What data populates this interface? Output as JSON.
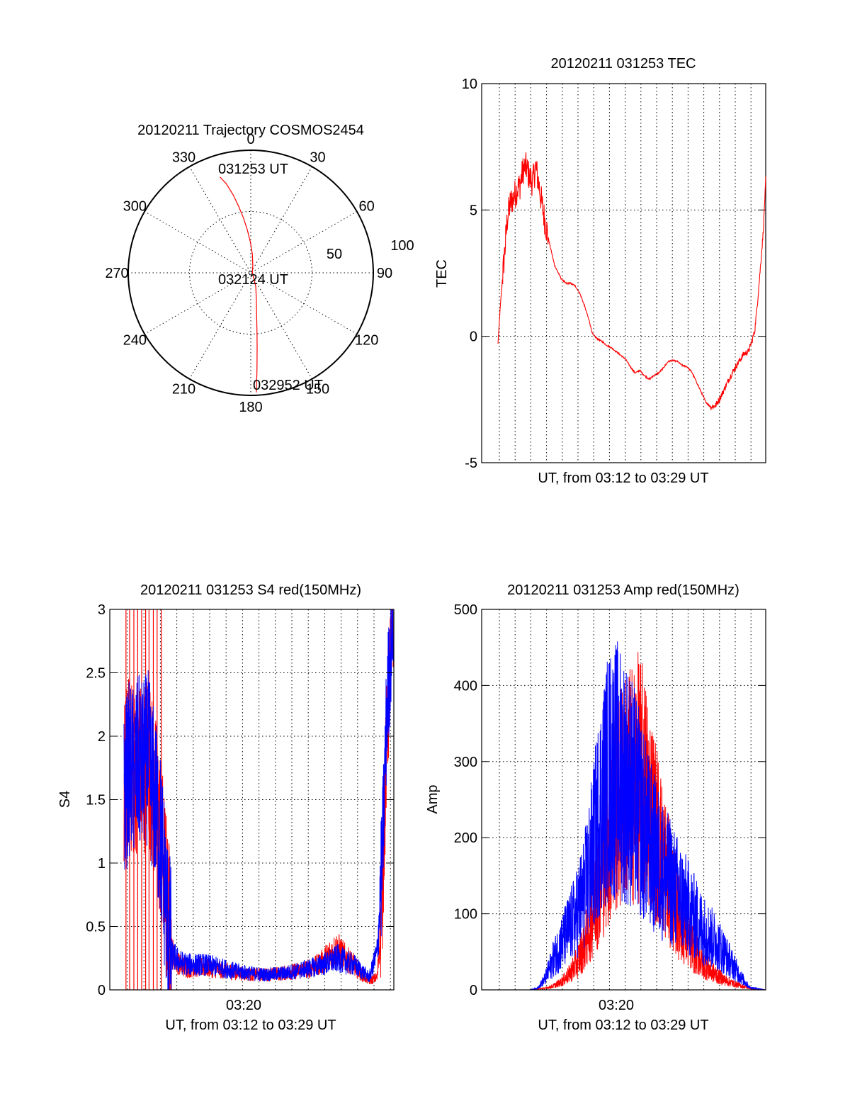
{
  "colors": {
    "red": "#ff0000",
    "blue": "#0000ff",
    "axis": "#000000",
    "background": "#ffffff"
  },
  "chart_data": [
    {
      "type": "polar",
      "title": "20120211 Trajectory COSMOS2454",
      "azimuth_labels": [
        "0",
        "30",
        "60",
        "90",
        "120",
        "150",
        "180",
        "210",
        "240",
        "270",
        "300",
        "330"
      ],
      "radial_labels": [
        "50",
        "100"
      ],
      "series": [
        {
          "color": "#ff0000",
          "points": [
            [
              -17.8,
              82.1
            ],
            [
              -15.3,
              75
            ],
            [
              -12.7,
              65
            ],
            [
              -10.3,
              55
            ],
            [
              -7.5,
              45
            ],
            [
              -4.5,
              35
            ],
            [
              -0.6,
              25
            ],
            [
              5.0,
              15
            ],
            [
              16.0,
              6
            ],
            [
              60,
              1.5
            ],
            [
              160,
              12
            ],
            [
              168,
              22
            ],
            [
              171.5,
              32
            ],
            [
              173.2,
              42
            ],
            [
              174.3,
              52
            ],
            [
              175.2,
              62
            ],
            [
              175.9,
              72
            ],
            [
              176.5,
              82
            ],
            [
              177.0,
              91
            ],
            [
              177.3,
              97.6
            ]
          ]
        }
      ],
      "annotations": [
        "031253 UT",
        "032124 UT",
        "032952 UT"
      ]
    },
    {
      "type": "line",
      "title": "20120211 031253 TEC",
      "xlabel": "UT, from 03:12 to 03:29 UT",
      "ylabel": "TEC",
      "ylim": [
        -5,
        10
      ],
      "yticks": [
        "-5",
        "0",
        "5",
        "10"
      ],
      "grid": true,
      "series": [
        {
          "color": "#ff0000",
          "x_minutes_after_0312": [
            0.0,
            0.15,
            0.3,
            0.45,
            0.6,
            0.8,
            1.0,
            1.2,
            1.4,
            1.6,
            1.8,
            2.0,
            2.2,
            2.4,
            2.6,
            2.8,
            3.0,
            3.3,
            3.6,
            4.0,
            4.3,
            4.6,
            4.9,
            5.2,
            5.5,
            5.8,
            6.0,
            6.3,
            6.6,
            6.9,
            7.2,
            7.5,
            7.8,
            8.1,
            8.4,
            8.7,
            9.0,
            9.3,
            9.6,
            9.9,
            10.2,
            10.5,
            10.8,
            11.1,
            11.4,
            11.7,
            12.0,
            12.3,
            12.6,
            12.9,
            13.2,
            13.5,
            13.8,
            14.1,
            14.4,
            14.7,
            15.0,
            15.3,
            15.6,
            15.9,
            16.1,
            16.3,
            16.5,
            16.7,
            16.85,
            17.0
          ],
          "values": [
            -0.3,
            1.2,
            2.4,
            3.5,
            4.7,
            5.3,
            5.5,
            5.8,
            6.0,
            6.6,
            6.7,
            6.3,
            6.1,
            6.7,
            6.0,
            5.2,
            4.5,
            3.6,
            2.8,
            2.3,
            2.1,
            2.1,
            2.0,
            1.7,
            1.2,
            0.6,
            0.1,
            -0.1,
            -0.2,
            -0.35,
            -0.45,
            -0.6,
            -0.75,
            -0.9,
            -1.2,
            -1.45,
            -1.35,
            -1.55,
            -1.7,
            -1.55,
            -1.45,
            -1.25,
            -1.0,
            -0.95,
            -1.0,
            -1.15,
            -1.2,
            -1.4,
            -1.8,
            -2.2,
            -2.6,
            -2.8,
            -2.75,
            -2.45,
            -2.05,
            -1.65,
            -1.3,
            -1.0,
            -0.7,
            -0.6,
            -0.25,
            0.2,
            1.5,
            3.0,
            4.2,
            6.2
          ]
        }
      ]
    },
    {
      "type": "line",
      "title": "20120211 031253 S4 red(150MHz)",
      "xlabel": "UT, from 03:12 to 03:29 UT",
      "ylabel": "S4",
      "xtick": "03:20",
      "ylim": [
        0,
        3
      ],
      "yticks": [
        "0",
        "0.5",
        "1",
        "1.5",
        "2",
        "2.5",
        "3"
      ],
      "grid": true,
      "series": [
        {
          "color": "#ff0000",
          "x_minutes_after_0312": [
            0.0,
            0.3,
            0.6,
            0.9,
            1.2,
            1.5,
            1.8,
            2.1,
            2.4,
            2.7,
            3.0,
            3.5,
            4.0,
            5.0,
            6.0,
            7.0,
            8.0,
            9.0,
            10.0,
            11.0,
            12.0,
            12.5,
            13.0,
            13.5,
            14.0,
            14.5,
            15.0,
            15.5,
            16.0,
            16.3,
            16.6,
            17.0
          ],
          "values": [
            1.6,
            1.8,
            1.7,
            1.8,
            1.7,
            1.9,
            1.6,
            1.4,
            1.1,
            0.7,
            0.3,
            0.2,
            0.17,
            0.18,
            0.16,
            0.14,
            0.12,
            0.12,
            0.13,
            0.15,
            0.18,
            0.22,
            0.28,
            0.32,
            0.25,
            0.2,
            0.12,
            0.07,
            0.1,
            0.7,
            2.0,
            3.0
          ]
        },
        {
          "color": "#0000ff",
          "x_minutes_after_0312": [
            0.0,
            0.3,
            0.6,
            0.9,
            1.2,
            1.5,
            1.8,
            2.1,
            2.4,
            2.7,
            3.0,
            3.5,
            4.0,
            5.0,
            6.0,
            7.0,
            8.0,
            9.0,
            10.0,
            11.0,
            12.0,
            12.5,
            13.0,
            13.5,
            14.0,
            14.5,
            15.0,
            15.5,
            16.0,
            16.3,
            16.6,
            17.0
          ],
          "values": [
            1.5,
            1.75,
            1.7,
            1.8,
            1.75,
            1.85,
            1.6,
            1.4,
            1.1,
            0.6,
            0.28,
            0.22,
            0.2,
            0.2,
            0.18,
            0.15,
            0.13,
            0.12,
            0.13,
            0.15,
            0.18,
            0.2,
            0.22,
            0.25,
            0.22,
            0.2,
            0.15,
            0.1,
            0.3,
            1.0,
            2.2,
            3.0
          ]
        }
      ]
    },
    {
      "type": "line",
      "title": "20120211 031253 Amp red(150MHz)",
      "xlabel": "UT, from 03:12 to 03:29 UT",
      "ylabel": "Amp",
      "xtick": "03:20",
      "ylim": [
        0,
        500
      ],
      "yticks": [
        "0",
        "100",
        "200",
        "300",
        "400",
        "500"
      ],
      "grid": true,
      "series": [
        {
          "color": "#ff0000",
          "x_minutes_after_0312": [
            0.0,
            1.0,
            2.0,
            3.0,
            3.5,
            4.0,
            4.5,
            5.0,
            5.5,
            6.0,
            6.5,
            7.0,
            7.5,
            8.0,
            8.5,
            9.0,
            9.5,
            10.0,
            10.5,
            11.0,
            11.5,
            12.0,
            12.5,
            13.0,
            13.5,
            14.0,
            14.5,
            15.0,
            15.5,
            16.0,
            17.0
          ],
          "values": [
            0,
            0,
            0,
            2,
            5,
            10,
            20,
            35,
            60,
            100,
            150,
            200,
            240,
            260,
            270,
            280,
            250,
            210,
            170,
            130,
            95,
            70,
            50,
            35,
            25,
            18,
            12,
            8,
            5,
            2,
            0
          ]
        },
        {
          "color": "#0000ff",
          "x_minutes_after_0312": [
            0.0,
            1.0,
            2.0,
            2.5,
            3.0,
            3.5,
            4.0,
            4.5,
            5.0,
            5.5,
            6.0,
            6.5,
            7.0,
            7.5,
            8.0,
            8.5,
            9.0,
            9.5,
            10.0,
            10.5,
            11.0,
            11.5,
            12.0,
            12.5,
            13.0,
            13.5,
            14.0,
            14.5,
            15.0,
            15.5,
            16.0,
            17.0
          ],
          "values": [
            0,
            0,
            0,
            2,
            15,
            40,
            60,
            80,
            100,
            130,
            180,
            240,
            280,
            290,
            280,
            260,
            230,
            200,
            175,
            155,
            140,
            125,
            110,
            95,
            80,
            70,
            60,
            45,
            30,
            15,
            3,
            0
          ]
        }
      ]
    }
  ]
}
